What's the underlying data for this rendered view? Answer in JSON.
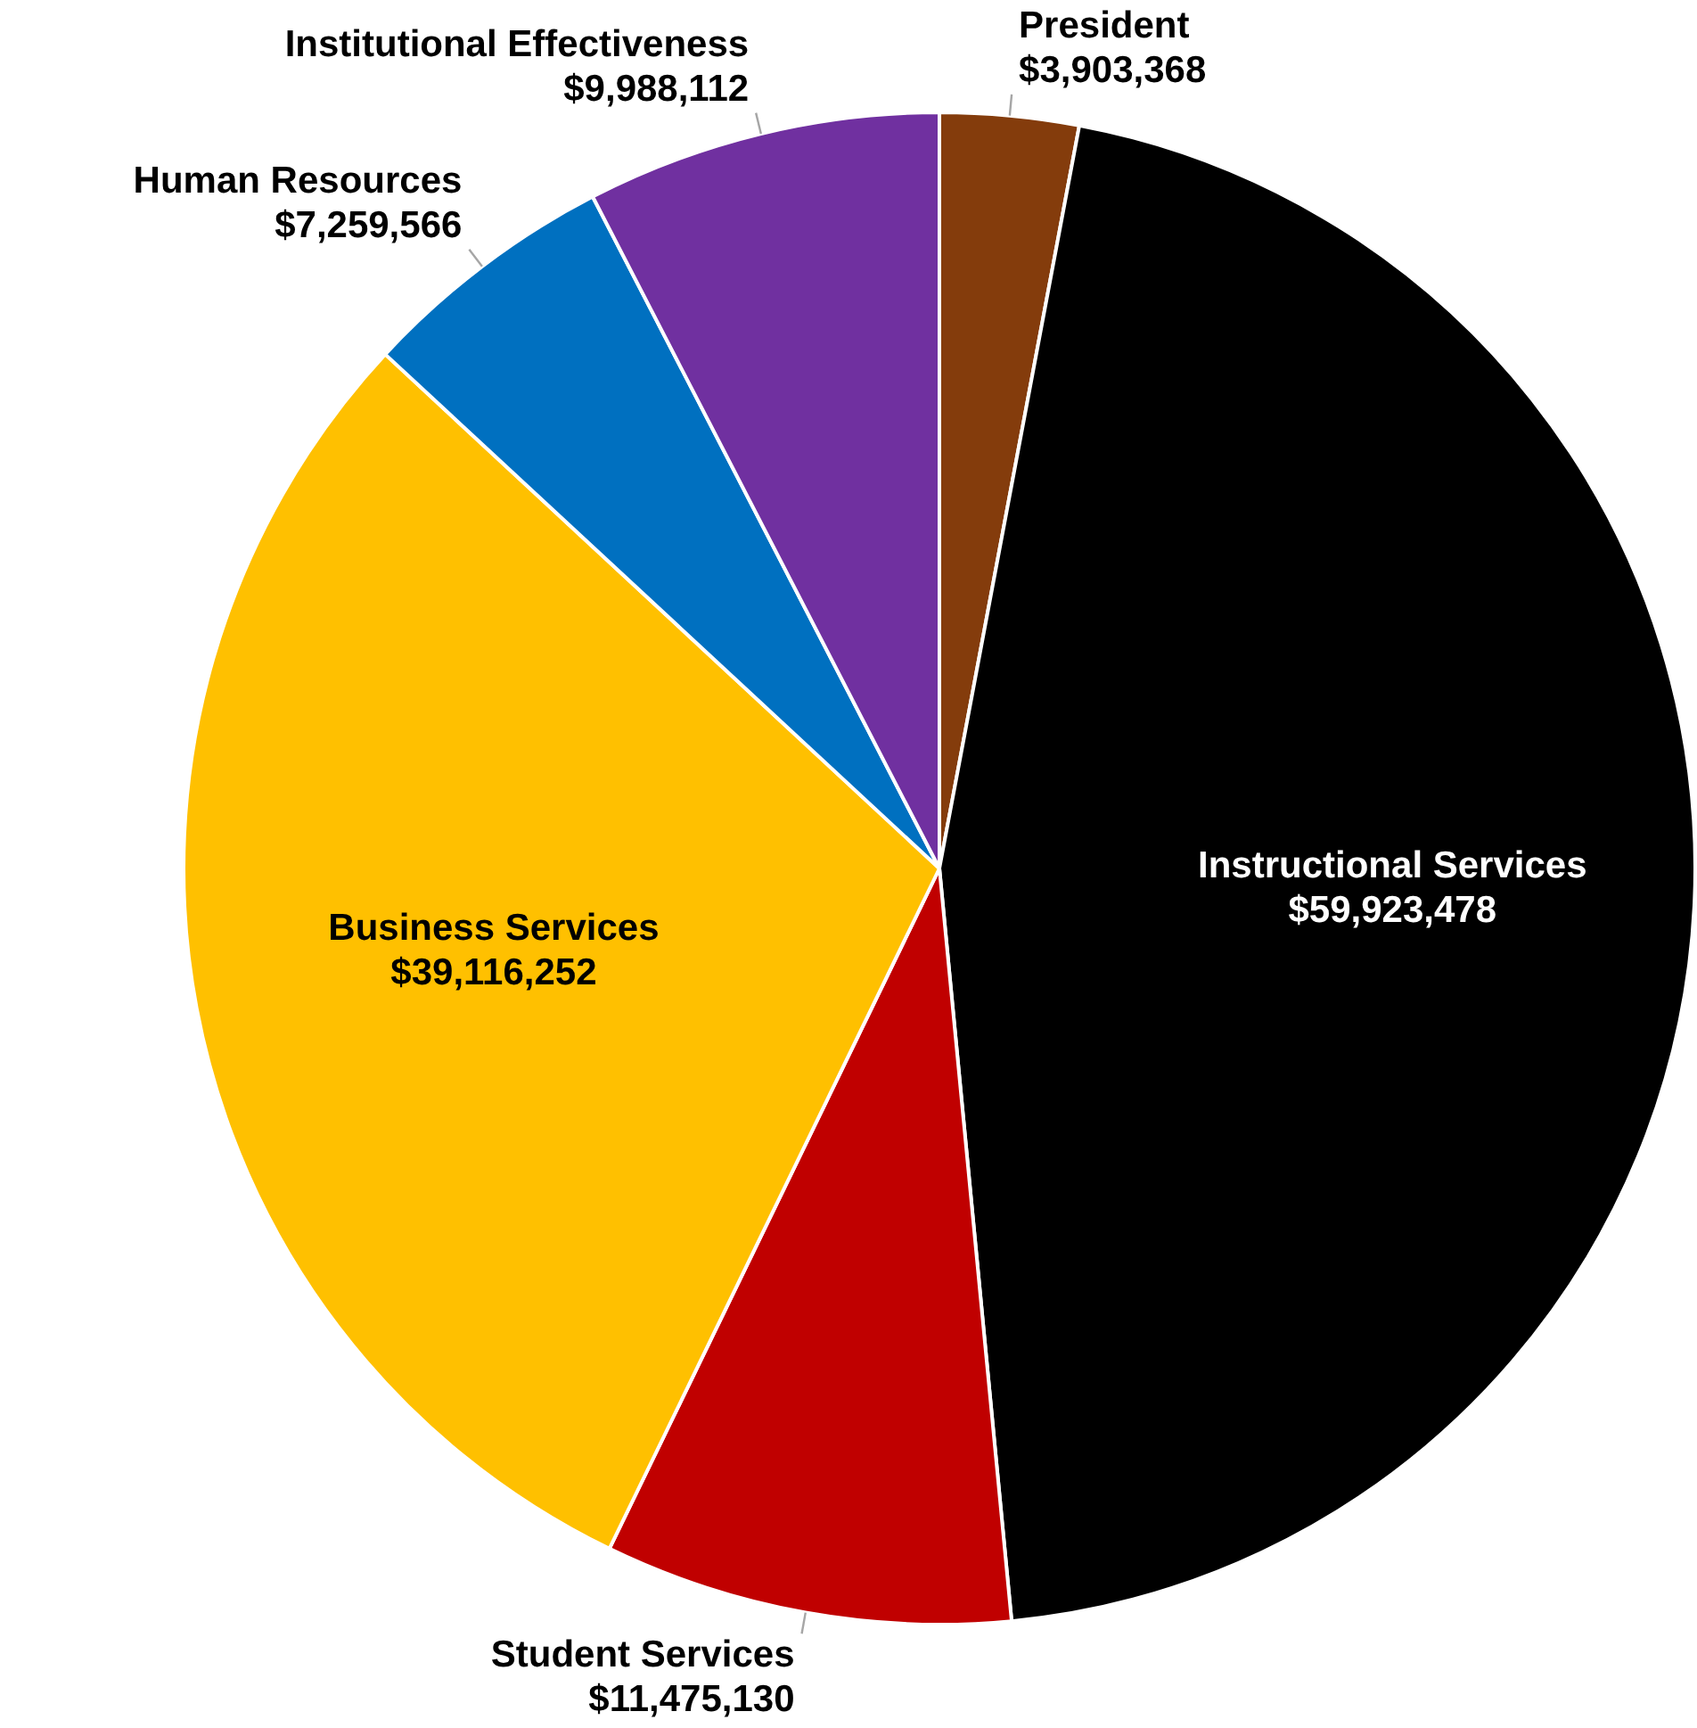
{
  "chart_data": {
    "type": "pie",
    "categories": [
      "President",
      "Instructional Services",
      "Student Services",
      "Business Services",
      "Human Resources",
      "Institutional Effectiveness"
    ],
    "values": [
      3903368,
      59923478,
      11475130,
      39116252,
      7259566,
      9988112
    ],
    "colors": [
      "#843c0c",
      "#000000",
      "#c00000",
      "#ffc000",
      "#0070c0",
      "#7030a0"
    ],
    "value_labels": [
      "$3,903,368",
      "$59,923,478",
      "$11,475,130",
      "$39,116,252",
      "$7,259,566",
      "$9,988,112"
    ]
  }
}
